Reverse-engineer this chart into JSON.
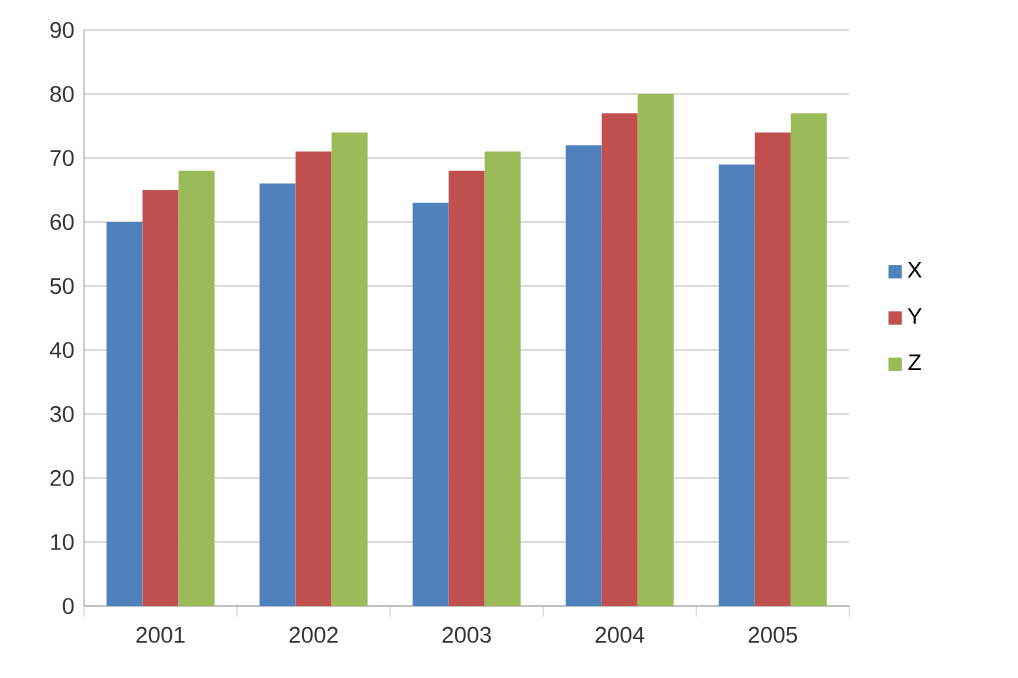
{
  "chart_data": {
    "type": "bar",
    "categories": [
      "2001",
      "2002",
      "2003",
      "2004",
      "2005"
    ],
    "series": [
      {
        "name": "X",
        "color": "#4f81bd",
        "values": [
          60,
          66,
          63,
          72,
          69
        ]
      },
      {
        "name": "Y",
        "color": "#c0504d",
        "values": [
          65,
          71,
          68,
          77,
          74
        ]
      },
      {
        "name": "Z",
        "color": "#9bbb59",
        "values": [
          68,
          74,
          71,
          80,
          77
        ]
      }
    ],
    "ylim": [
      0,
      90
    ],
    "yticks": [
      0,
      10,
      20,
      30,
      40,
      50,
      60,
      70,
      80,
      90
    ],
    "grid": "y",
    "legend": "right"
  }
}
